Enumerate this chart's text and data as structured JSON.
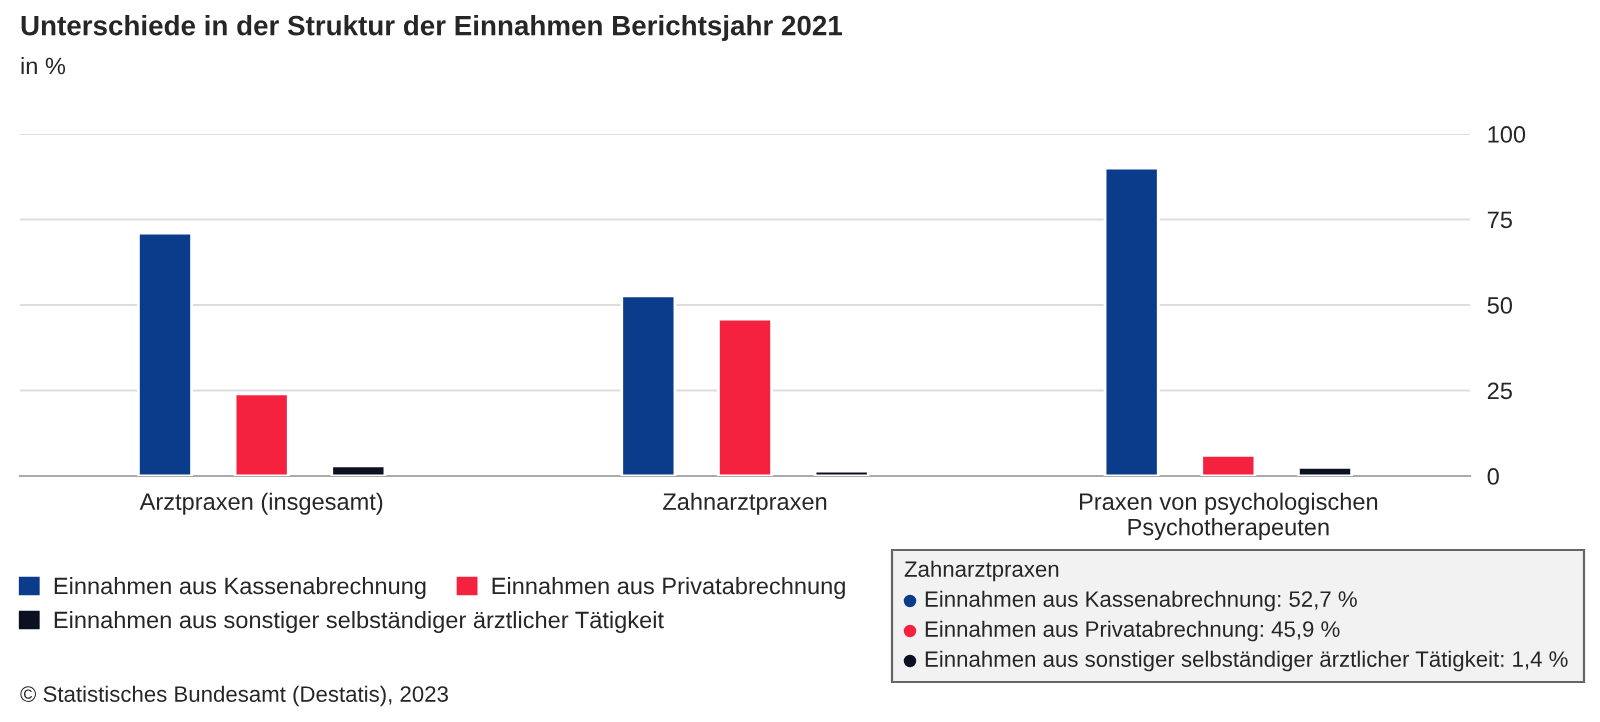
{
  "chart_data": {
    "type": "bar",
    "title": "Unterschiede in der Struktur der Einnahmen Berichtsjahr 2021",
    "subtitle": "in %",
    "categories": [
      "Arztpraxen (insgesamt)",
      "Zahnarztpraxen",
      "Praxen von psychologischen\nPsychotherapeuten"
    ],
    "series": [
      {
        "name": "Einnahmen aus Kassenabrechnung",
        "color": "#0b3c8c",
        "values": [
          71,
          52.7,
          90
        ]
      },
      {
        "name": "Einnahmen aus Privatabrechnung",
        "color": "#f5223f",
        "values": [
          24,
          45.9,
          6
        ]
      },
      {
        "name": "Einnahmen aus sonstiger selbständiger ärztlicher Tätigkeit",
        "color": "#0b1121",
        "values": [
          3,
          1.4,
          2.5
        ]
      }
    ],
    "ylim": [
      0,
      100
    ],
    "yticks": [
      0,
      25,
      50,
      75,
      100
    ],
    "grid": "y",
    "legend": "bottom",
    "annotations": [
      "Zahnarztpraxen",
      "Einnahmen aus Kassenabrechnung: 52,7 %",
      "Einnahmen aus Privatabrechnung: 45,9 %",
      "Einnahmen aus sonstiger selbständiger ärztlicher Tätigkeit: 1,4 %",
      "© Statistisches Bundesamt (Destatis), 2023"
    ]
  }
}
